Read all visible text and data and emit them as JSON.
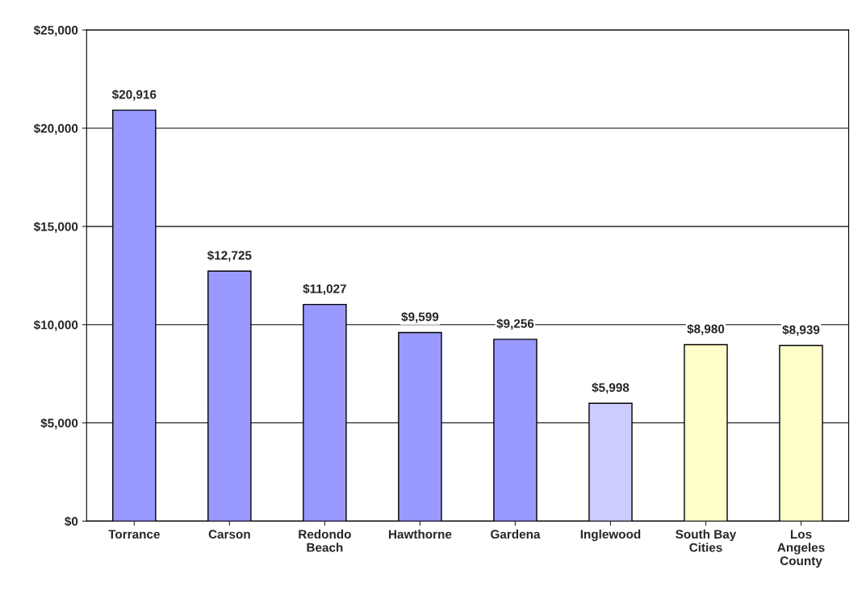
{
  "chart_data": {
    "type": "bar",
    "categories": [
      "Torrance",
      "Carson",
      "Redondo\nBeach",
      "Hawthorne",
      "Gardena",
      "Inglewood",
      "South Bay\nCities",
      "Los\nAngeles\nCounty"
    ],
    "values": [
      20916,
      12725,
      11027,
      9599,
      9256,
      5998,
      8980,
      8939
    ],
    "value_labels": [
      "$20,916",
      "$12,725",
      "$11,027",
      "$9,599",
      "$9,256",
      "$5,998",
      "$8,980",
      "$8,939"
    ],
    "colors": [
      "#9999ff",
      "#9999ff",
      "#9999ff",
      "#9999ff",
      "#9999ff",
      "#ccccff",
      "#ffffcc",
      "#ffffcc"
    ],
    "ylim": [
      0,
      25000
    ],
    "yticks": [
      {
        "value": 0,
        "label": "$0"
      },
      {
        "value": 5000,
        "label": "$5,000"
      },
      {
        "value": 10000,
        "label": "$10,000"
      },
      {
        "value": 15000,
        "label": "$15,000"
      },
      {
        "value": 20000,
        "label": "$20,000"
      },
      {
        "value": 25000,
        "label": "$25,000"
      }
    ],
    "grid": "y"
  }
}
